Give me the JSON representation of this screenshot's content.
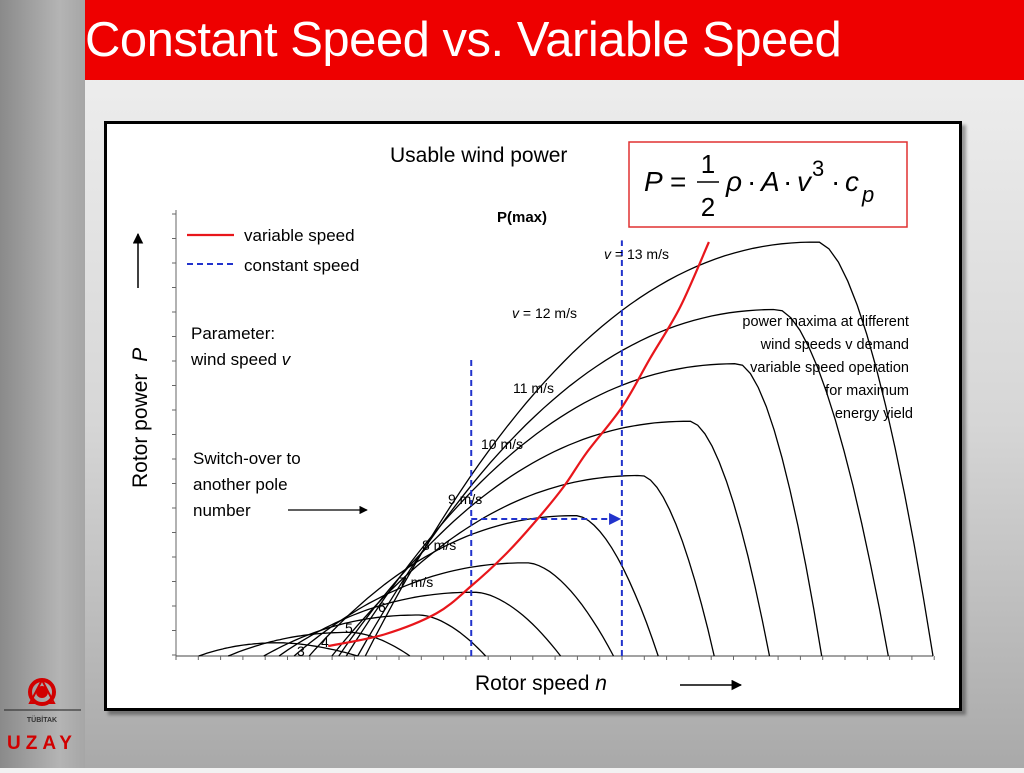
{
  "title": "Constant Speed vs. Variable Speed",
  "logo": {
    "small_text": "TÜBİTAK",
    "big_text": "UZAY"
  },
  "chart_data": {
    "type": "line",
    "title": "Usable wind power",
    "formula": {
      "lhs": "P",
      "equals": "=",
      "num": "1",
      "den": "2",
      "rho": "ρ",
      "dot1": "·",
      "A": "A",
      "dot2": "·",
      "v": "v",
      "exp": "3",
      "dot3": "·",
      "c": "c",
      "sub": "p"
    },
    "xlabel": {
      "text": "Rotor speed",
      "var": "n"
    },
    "ylabel": {
      "text": "Rotor power",
      "var": "P"
    },
    "legend": [
      {
        "name": "variable speed",
        "color": "#e8161b",
        "style": "solid"
      },
      {
        "name": "constant speed",
        "color": "#2233cc",
        "style": "dashed"
      }
    ],
    "legend_position": "top-left",
    "parameter_note": {
      "line1": "Parameter:",
      "line2_text": "wind speed",
      "line2_var": "v"
    },
    "annotation_pmax": "P(max)",
    "annotation_right": [
      "power maxima at different",
      "wind speeds v demand",
      "variable speed operation",
      "for maximum",
      "energy yield"
    ],
    "annotation_switch": [
      "Switch-over to",
      "another pole",
      "number"
    ],
    "axes": {
      "xlim": [
        0,
        100
      ],
      "ylim": [
        0,
        100
      ],
      "grid": false,
      "ticks_labeled": false
    },
    "curve_labels": [
      {
        "v": 13,
        "pre": "v",
        "text": " = 13 m/s"
      },
      {
        "v": 12,
        "pre": "v",
        "text": " = 12 m/s"
      },
      {
        "v": 11,
        "pre": "",
        "text": "11 m/s"
      },
      {
        "v": 10,
        "pre": "",
        "text": "10 m/s"
      },
      {
        "v": 9,
        "pre": "",
        "text": "9 m/s"
      },
      {
        "v": 8,
        "pre": "",
        "text": "8 m/s"
      },
      {
        "v": 7,
        "pre": "",
        "text": "7 m/s"
      },
      {
        "v": 6,
        "pre": "",
        "text": "6"
      },
      {
        "v": 5,
        "pre": "",
        "text": "5"
      },
      {
        "v": 4,
        "pre": "",
        "text": "4"
      },
      {
        "v": 3,
        "pre": "",
        "text": "3"
      }
    ],
    "series": [
      {
        "name": "3 m/s",
        "wind_speed": 3,
        "start": 3.0,
        "peak_x": 13.6,
        "peak_y": 3.2,
        "end": 24.0
      },
      {
        "name": "4 m/s",
        "wind_speed": 4,
        "start": 6.9,
        "peak_x": 23.0,
        "peak_y": 5.7,
        "end": 30.9
      },
      {
        "name": "5 m/s",
        "wind_speed": 5,
        "start": 11.6,
        "peak_x": 32.1,
        "peak_y": 9.9,
        "end": 40.9
      },
      {
        "name": "6 m/s",
        "wind_speed": 6,
        "start": 13.6,
        "peak_x": 39.5,
        "peak_y": 15.4,
        "end": 50.8
      },
      {
        "name": "7 m/s",
        "wind_speed": 7,
        "start": 15.6,
        "peak_x": 46.4,
        "peak_y": 22.5,
        "end": 57.8
      },
      {
        "name": "8 m/s",
        "wind_speed": 8,
        "start": 17.6,
        "peak_x": 52.9,
        "peak_y": 33.9,
        "end": 63.7
      },
      {
        "name": "9 m/s",
        "wind_speed": 9,
        "start": 20.6,
        "peak_x": 61.5,
        "peak_y": 43.6,
        "end": 71.1
      },
      {
        "name": "10 m/s",
        "wind_speed": 10,
        "start": 21.5,
        "peak_x": 67.9,
        "peak_y": 56.7,
        "end": 78.4
      },
      {
        "name": "11 m/s",
        "wind_speed": 11,
        "start": 22.5,
        "peak_x": 74.3,
        "peak_y": 70.6,
        "end": 85.3
      },
      {
        "name": "12 m/s",
        "wind_speed": 12,
        "start": 24.0,
        "peak_x": 79.5,
        "peak_y": 83.7,
        "end": 94.1
      },
      {
        "name": "13 m/s",
        "wind_speed": 13,
        "start": 25.0,
        "peak_x": 84.8,
        "peak_y": 100.0,
        "end": 100.0
      }
    ],
    "variable_speed_curve": [
      [
        20.1,
        2.4
      ],
      [
        27.5,
        5.2
      ],
      [
        34.4,
        10.3
      ],
      [
        39.0,
        16.9
      ],
      [
        43.4,
        24.3
      ],
      [
        47.2,
        31.9
      ],
      [
        51.1,
        40.6
      ],
      [
        54.2,
        49.0
      ],
      [
        58.9,
        60.1
      ],
      [
        62.6,
        71.8
      ],
      [
        66.6,
        84.3
      ],
      [
        70.4,
        100.0
      ]
    ],
    "constant_speed_lines": [
      {
        "x": 39.0,
        "y_top": 71.8,
        "crossing_y": 25.5,
        "switch_y": 33.1
      },
      {
        "x": 58.9,
        "y_top": 100.4,
        "crossing_y": 60.6,
        "switch_y": 33.1
      }
    ]
  }
}
